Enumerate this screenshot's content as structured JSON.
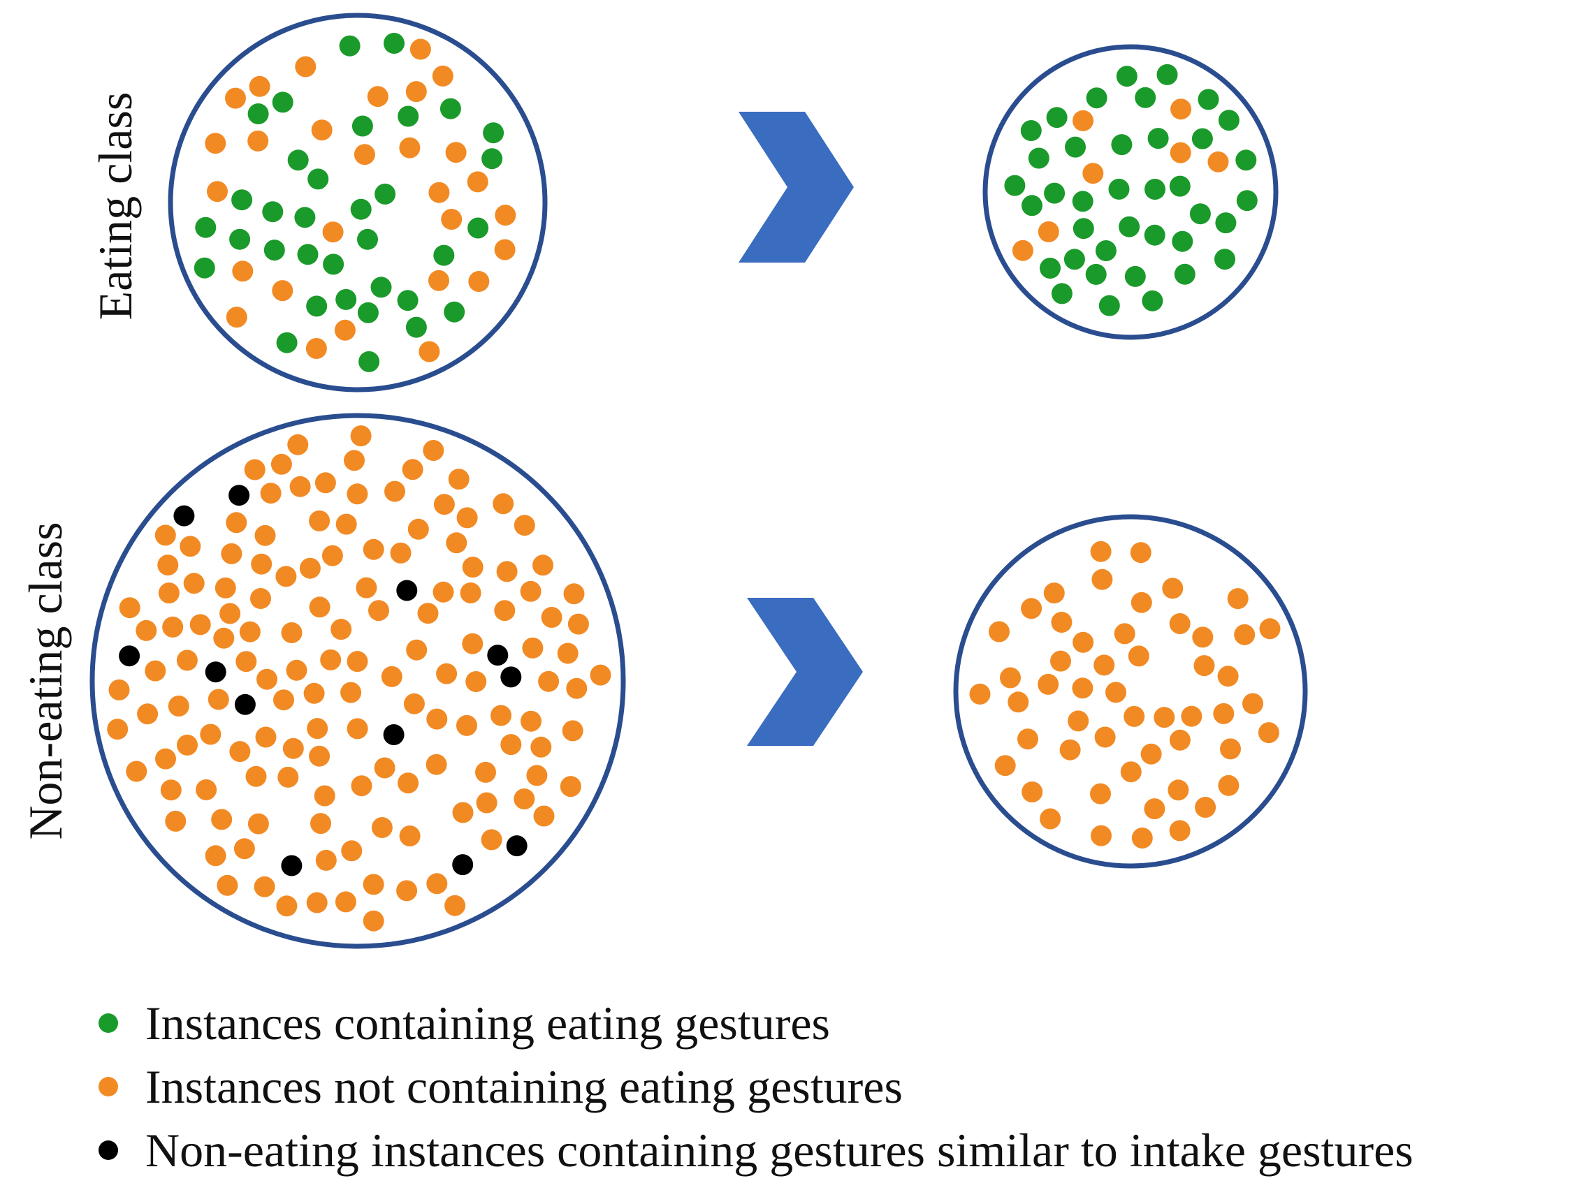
{
  "labels": {
    "eating_class": "Eating class",
    "non_eating_class": "Non-eating class"
  },
  "legend": [
    {
      "text": "Instances containing eating gestures",
      "color": "#1a9a2a"
    },
    {
      "text": "Instances not containing eating gestures",
      "color": "#f28a24"
    },
    {
      "text": "Non-eating instances containing gestures similar to intake gestures",
      "color": "#000000"
    }
  ],
  "colors": {
    "circle_stroke": "#2a4d8f",
    "arrow": "#3a6cc0",
    "green": "#1a9a2a",
    "orange": "#f28a24",
    "black": "#000000"
  },
  "icons": {
    "arrow": "chevron-right-icon"
  }
}
